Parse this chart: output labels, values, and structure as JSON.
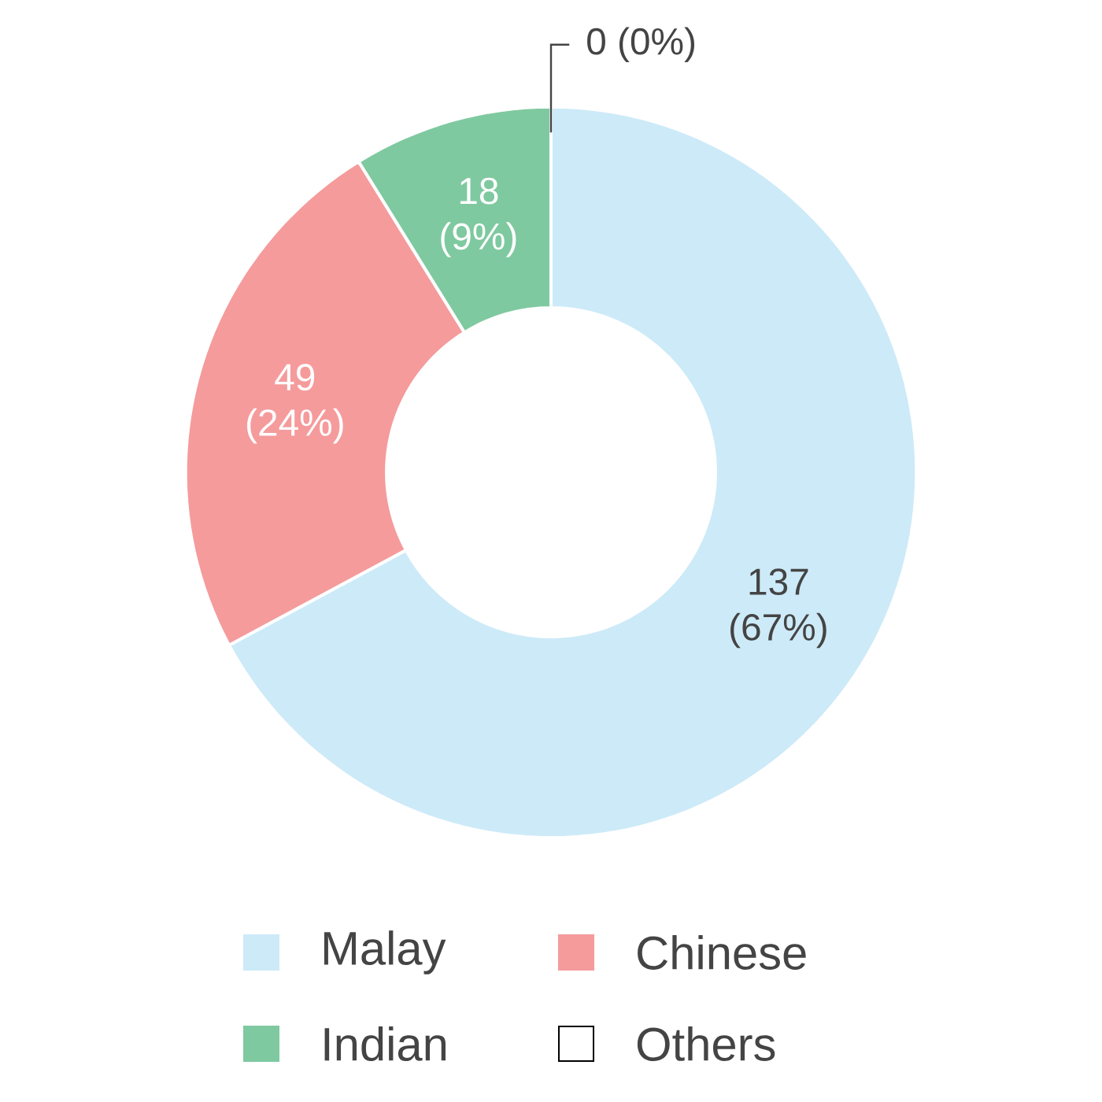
{
  "chart_data": {
    "type": "donut",
    "categories": [
      "Malay",
      "Chinese",
      "Indian",
      "Others"
    ],
    "values": [
      137,
      49,
      18,
      0
    ],
    "colors": [
      "#cdeaf8",
      "#f59b9c",
      "#7fc9a0",
      "#ffffff"
    ],
    "value_labels": [
      "137 (67%)",
      "49 (24%)",
      "18 (9%)",
      "0 (0%)"
    ],
    "legend": "bottom"
  }
}
